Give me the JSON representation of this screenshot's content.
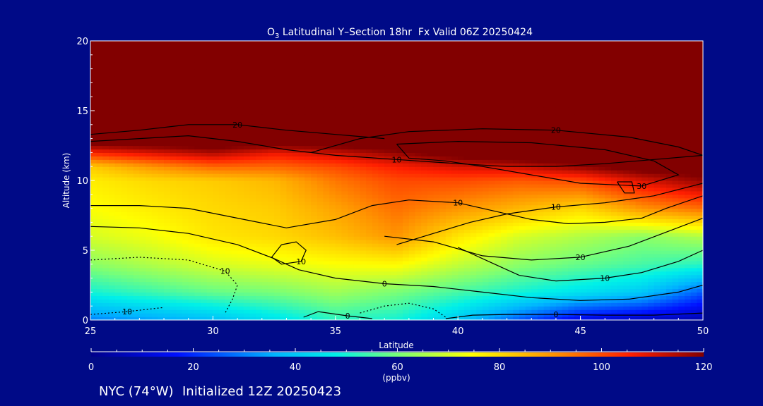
{
  "chart_data": {
    "type": "heatmap",
    "title_pre": "O",
    "title_sub": "3",
    "title_post": " Latitudinal Y–Section 18hr  Fx Valid 06Z 20250424",
    "xlabel": "Latitude",
    "ylabel": "Altitude (km)",
    "xlim": [
      25,
      50
    ],
    "ylim": [
      0,
      20
    ],
    "xticks": [
      25,
      30,
      35,
      40,
      45,
      50
    ],
    "yticks": [
      0,
      5,
      10,
      15,
      20
    ],
    "colorbar": {
      "range": [
        0,
        120
      ],
      "ticks": [
        0,
        20,
        40,
        60,
        80,
        100,
        120
      ],
      "unit": "(ppbv)"
    },
    "x": [
      25,
      27.5,
      30,
      32.5,
      35,
      37.5,
      40,
      42.5,
      45,
      47.5,
      50
    ],
    "y": [
      0,
      2,
      4,
      6,
      8,
      10,
      11,
      12,
      13,
      16,
      20
    ],
    "values": [
      [
        30,
        34,
        38,
        45,
        52,
        50,
        40,
        25,
        12,
        8,
        5
      ],
      [
        50,
        54,
        58,
        60,
        64,
        60,
        55,
        50,
        45,
        40,
        25
      ],
      [
        62,
        66,
        70,
        72,
        74,
        75,
        68,
        62,
        58,
        55,
        52
      ],
      [
        70,
        73,
        78,
        80,
        84,
        90,
        78,
        70,
        66,
        62,
        66
      ],
      [
        74,
        77,
        80,
        82,
        88,
        95,
        90,
        85,
        80,
        90,
        95
      ],
      [
        77,
        80,
        82,
        85,
        94,
        100,
        100,
        98,
        100,
        110,
        118
      ],
      [
        82,
        90,
        96,
        96,
        100,
        106,
        110,
        112,
        118,
        125,
        125
      ],
      [
        105,
        110,
        115,
        108,
        112,
        118,
        125,
        130,
        130,
        130,
        130
      ],
      [
        130,
        130,
        130,
        130,
        130,
        130,
        130,
        130,
        130,
        130,
        130
      ],
      [
        130,
        130,
        130,
        130,
        130,
        130,
        130,
        130,
        130,
        130,
        130
      ],
      [
        130,
        130,
        130,
        130,
        130,
        130,
        130,
        130,
        130,
        130,
        130
      ]
    ],
    "contours": [
      {
        "label": "10",
        "points": [
          [
            25,
            12.8
          ],
          [
            27,
            13
          ],
          [
            29,
            13.2
          ],
          [
            31,
            12.8
          ],
          [
            33,
            12.2
          ],
          [
            35,
            11.8
          ],
          [
            37.5,
            11.5
          ],
          [
            40,
            11.2
          ],
          [
            42,
            11
          ],
          [
            44,
            11
          ],
          [
            46,
            11.2
          ],
          [
            48,
            11.5
          ],
          [
            50,
            11.8
          ]
        ]
      },
      {
        "label": "20",
        "points": [
          [
            25,
            13.3
          ],
          [
            27,
            13.6
          ],
          [
            29,
            14
          ],
          [
            31,
            14
          ],
          [
            33,
            13.6
          ],
          [
            35,
            13.3
          ],
          [
            37,
            13
          ]
        ]
      },
      {
        "label": "20",
        "points": [
          [
            34,
            12
          ],
          [
            36,
            13
          ],
          [
            38,
            13.5
          ],
          [
            41,
            13.7
          ],
          [
            44,
            13.6
          ],
          [
            47,
            13.1
          ],
          [
            49,
            12.4
          ],
          [
            50,
            11.8
          ]
        ]
      },
      {
        "label": "30",
        "points": [
          [
            37.5,
            12.6
          ],
          [
            40,
            12.8
          ],
          [
            43,
            12.7
          ],
          [
            46,
            12.2
          ],
          [
            48,
            11.4
          ],
          [
            49,
            10.4
          ],
          [
            47.5,
            9.6
          ],
          [
            45,
            9.8
          ],
          [
            43,
            10.4
          ],
          [
            41,
            11
          ],
          [
            39.5,
            11.4
          ],
          [
            38,
            11.6
          ],
          [
            37.5,
            12.6
          ]
        ]
      },
      {
        "label": "10",
        "points": [
          [
            25,
            8.2
          ],
          [
            27,
            8.2
          ],
          [
            29,
            8
          ],
          [
            31,
            7.3
          ],
          [
            33,
            6.6
          ],
          [
            35,
            7.2
          ],
          [
            36.5,
            8.2
          ],
          [
            38,
            8.6
          ],
          [
            40,
            8.4
          ],
          [
            41.5,
            7.8
          ],
          [
            43,
            7.2
          ],
          [
            44.5,
            6.9
          ],
          [
            46,
            7
          ],
          [
            47.5,
            7.3
          ],
          [
            48.5,
            8
          ],
          [
            50,
            8.9
          ]
        ]
      },
      {
        "label": "10",
        "points": [
          [
            37.5,
            5.4
          ],
          [
            39,
            6.2
          ],
          [
            40.5,
            7
          ],
          [
            42,
            7.6
          ],
          [
            44,
            8.1
          ],
          [
            46,
            8.4
          ],
          [
            48,
            8.9
          ],
          [
            50,
            9.8
          ]
        ]
      },
      {
        "label": "10",
        "points": [
          [
            32.8,
            5.4
          ],
          [
            33.4,
            5.6
          ],
          [
            33.8,
            5
          ],
          [
            33.6,
            4.2
          ],
          [
            32.8,
            4
          ],
          [
            32.4,
            4.5
          ],
          [
            32.8,
            5.4
          ]
        ]
      },
      {
        "label": "20",
        "points": [
          [
            37,
            6
          ],
          [
            39,
            5.6
          ],
          [
            41,
            4.6
          ],
          [
            43,
            4.3
          ],
          [
            45,
            4.5
          ],
          [
            47,
            5.3
          ],
          [
            48.5,
            6.3
          ],
          [
            50,
            7.3
          ]
        ]
      },
      {
        "label": "10",
        "points": [
          [
            40,
            5.2
          ],
          [
            41.5,
            4
          ],
          [
            42.5,
            3.2
          ],
          [
            44,
            2.8
          ],
          [
            46,
            3
          ],
          [
            47.5,
            3.4
          ],
          [
            49,
            4.2
          ],
          [
            50,
            5
          ]
        ]
      },
      {
        "label": "0",
        "points": [
          [
            25,
            6.7
          ],
          [
            27,
            6.6
          ],
          [
            29,
            6.2
          ],
          [
            31,
            5.4
          ],
          [
            32.5,
            4.4
          ],
          [
            33.5,
            3.6
          ],
          [
            35,
            3
          ],
          [
            37,
            2.6
          ],
          [
            39,
            2.4
          ],
          [
            41,
            2
          ],
          [
            43,
            1.6
          ],
          [
            45,
            1.4
          ],
          [
            47,
            1.5
          ],
          [
            49,
            2
          ],
          [
            50,
            2.5
          ]
        ]
      },
      {
        "label": "0",
        "points": [
          [
            33.7,
            0.2
          ],
          [
            34.3,
            0.6
          ],
          [
            35.5,
            0.3
          ],
          [
            36.5,
            0.1
          ]
        ]
      },
      {
        "label": "0",
        "points": [
          [
            39.5,
            0.1
          ],
          [
            40.6,
            0.35
          ],
          [
            42,
            0.4
          ],
          [
            44,
            0.4
          ],
          [
            46,
            0.35
          ],
          [
            48,
            0.35
          ],
          [
            50,
            0.5
          ]
        ]
      },
      {
        "label": "10",
        "dashed": true,
        "points": [
          [
            25,
            4.3
          ],
          [
            27,
            4.5
          ],
          [
            29,
            4.3
          ],
          [
            30.5,
            3.5
          ],
          [
            31,
            2.5
          ],
          [
            30.8,
            1.5
          ],
          [
            30.5,
            0.5
          ]
        ]
      },
      {
        "label": "10",
        "dashed": true,
        "points": [
          [
            25,
            0.4
          ],
          [
            26.5,
            0.6
          ],
          [
            28,
            0.9
          ]
        ]
      },
      {
        "label": "",
        "dashed": true,
        "points": [
          [
            36,
            0.5
          ],
          [
            37,
            1
          ],
          [
            38,
            1.2
          ],
          [
            39,
            0.8
          ],
          [
            39.5,
            0.2
          ]
        ]
      },
      {
        "label": "",
        "points": [
          [
            46.5,
            9.9
          ],
          [
            47.1,
            9.9
          ],
          [
            47.2,
            9.1
          ],
          [
            46.8,
            9.1
          ],
          [
            46.5,
            9.9
          ]
        ]
      }
    ]
  },
  "footer": {
    "location": "NYC (74°W)",
    "initialized": "Initialized 12Z 20250423"
  }
}
